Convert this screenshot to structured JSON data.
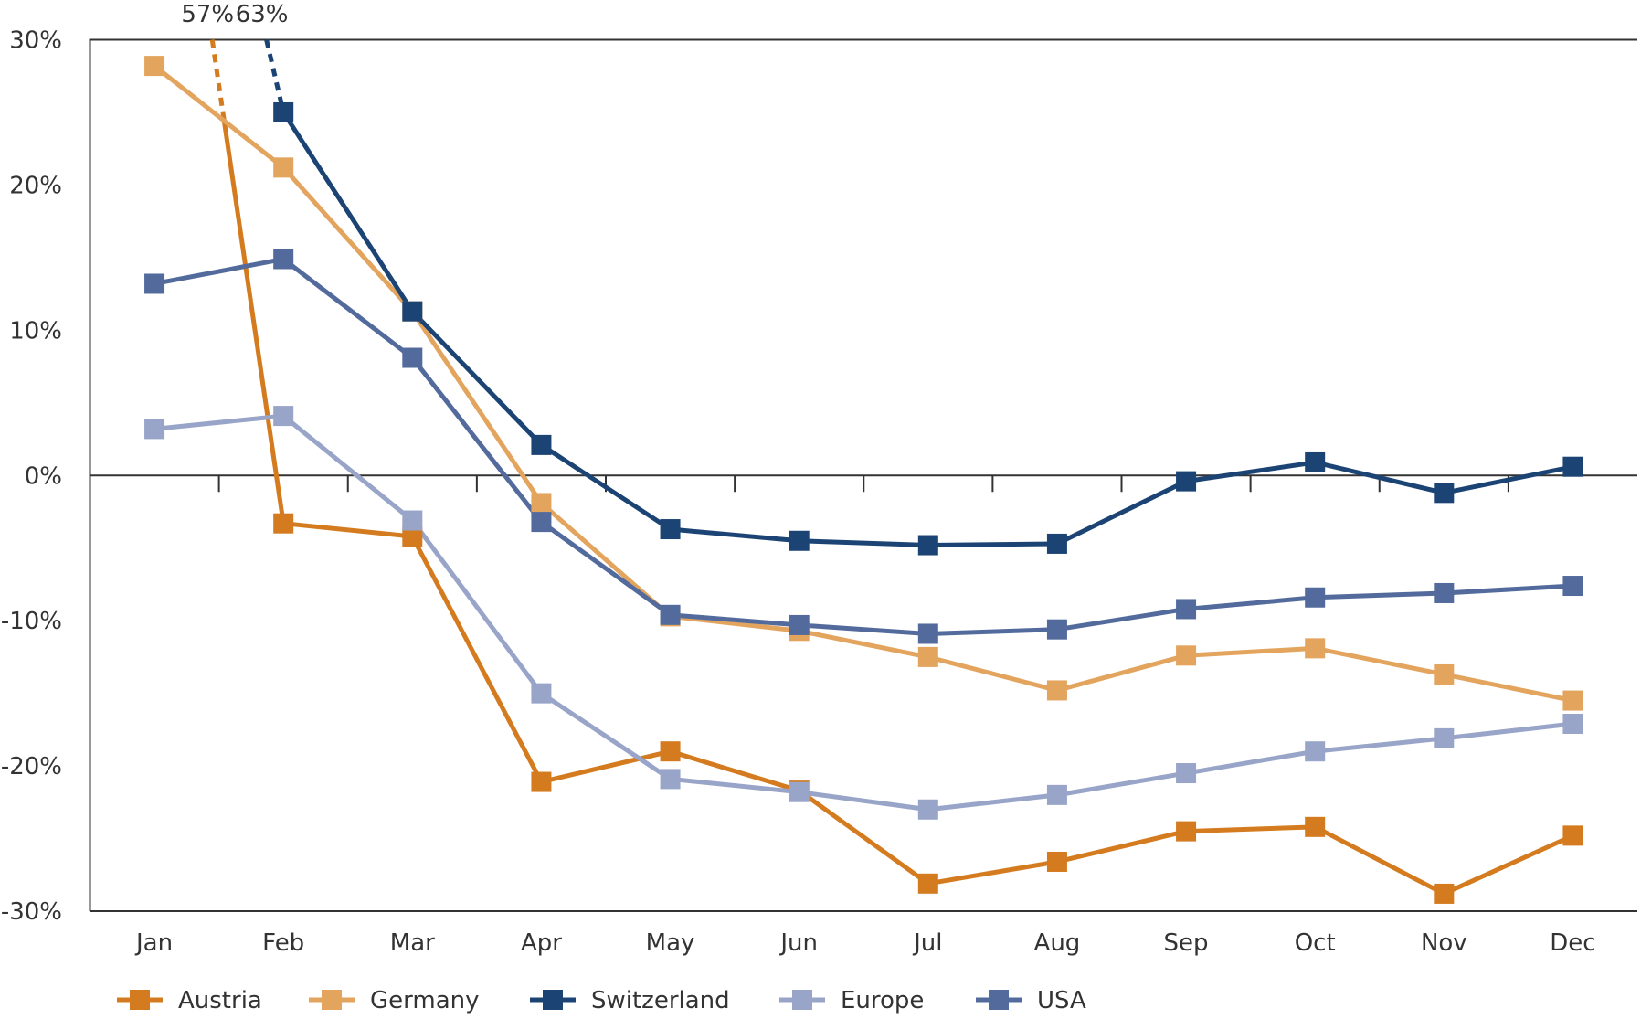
{
  "chart_data": {
    "type": "line",
    "title": "",
    "xlabel": "",
    "ylabel": "",
    "categories": [
      "Jan",
      "Feb",
      "Mar",
      "Apr",
      "May",
      "Jun",
      "Jul",
      "Aug",
      "Sep",
      "Oct",
      "Nov",
      "Dec"
    ],
    "ylim": [
      -30,
      30
    ],
    "yticks": [
      30,
      20,
      10,
      0,
      -10,
      -20,
      -30
    ],
    "ytick_labels": [
      "30%",
      "20%",
      "10%",
      "0%",
      "-10%",
      "-20%",
      "-30%"
    ],
    "grid": false,
    "legend_position": "bottom",
    "marker": "square",
    "series": [
      {
        "name": "Austria",
        "color": "#d47b1f",
        "values": [
          57,
          -3.3,
          -4.2,
          -21.1,
          -19.0,
          -21.7,
          -28.1,
          -26.6,
          -24.5,
          -24.2,
          -28.8,
          -24.8
        ],
        "offscale_label": "57%"
      },
      {
        "name": "Germany",
        "color": "#e3a45e",
        "values": [
          28.2,
          21.2,
          11.3,
          -1.9,
          -9.7,
          -10.7,
          -12.5,
          -14.8,
          -12.4,
          -11.9,
          -13.7,
          -15.5
        ]
      },
      {
        "name": "Switzerland",
        "color": "#1b4474",
        "values": [
          63,
          25.0,
          11.3,
          2.1,
          -3.7,
          -4.5,
          -4.8,
          -4.7,
          -0.4,
          0.9,
          -1.2,
          0.6
        ],
        "offscale_label": "63%"
      },
      {
        "name": "Europe",
        "color": "#98a5c9",
        "values": [
          3.2,
          4.1,
          -3.1,
          -15.0,
          -20.9,
          -21.8,
          -23.0,
          -22.0,
          -20.5,
          -19.0,
          -18.1,
          -17.1
        ]
      },
      {
        "name": "USA",
        "color": "#536b9c",
        "values": [
          13.2,
          14.9,
          8.1,
          -3.2,
          -9.6,
          -10.3,
          -10.9,
          -10.6,
          -9.2,
          -8.4,
          -8.1,
          -7.6
        ]
      }
    ]
  }
}
